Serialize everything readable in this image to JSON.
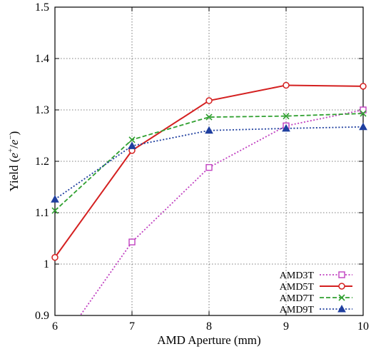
{
  "chart_data": {
    "type": "line",
    "title": "",
    "xlabel": "AMD Aperture (mm)",
    "ylabel_main": "Yield (",
    "ylabel_e1": "e",
    "ylabel_sup1": "+",
    "ylabel_slash": "/",
    "ylabel_e2": "e",
    "ylabel_sup2": "−",
    "ylabel_close": ")",
    "xlim": [
      6,
      10
    ],
    "ylim": [
      0.9,
      1.5
    ],
    "xticks": [
      "6",
      "7",
      "8",
      "9",
      "10"
    ],
    "yticks": [
      "0.9",
      "1",
      "1.1",
      "1.2",
      "1.3",
      "1.4",
      "1.5"
    ],
    "grid": true,
    "legend_position": "bottom-right",
    "series": [
      {
        "name": "AMD3T",
        "color": "#c040c0",
        "line_style": "dotted",
        "marker": "square",
        "x": [
          6,
          7,
          8,
          9,
          10
        ],
        "values": [
          0.83,
          1.043,
          1.188,
          1.269,
          1.3
        ]
      },
      {
        "name": "AMD5T",
        "color": "#d42020",
        "line_style": "solid",
        "marker": "circle",
        "x": [
          6,
          7,
          8,
          9,
          10
        ],
        "values": [
          1.013,
          1.221,
          1.318,
          1.348,
          1.346
        ]
      },
      {
        "name": "AMD7T",
        "color": "#30a030",
        "line_style": "dashed",
        "marker": "x",
        "x": [
          6,
          7,
          8,
          9,
          10
        ],
        "values": [
          1.104,
          1.242,
          1.286,
          1.288,
          1.293
        ]
      },
      {
        "name": "AMD9T",
        "color": "#1f3f9f",
        "line_style": "dotted",
        "marker": "triangle",
        "x": [
          6,
          7,
          8,
          9,
          10
        ],
        "values": [
          1.126,
          1.23,
          1.26,
          1.264,
          1.267
        ]
      }
    ]
  }
}
